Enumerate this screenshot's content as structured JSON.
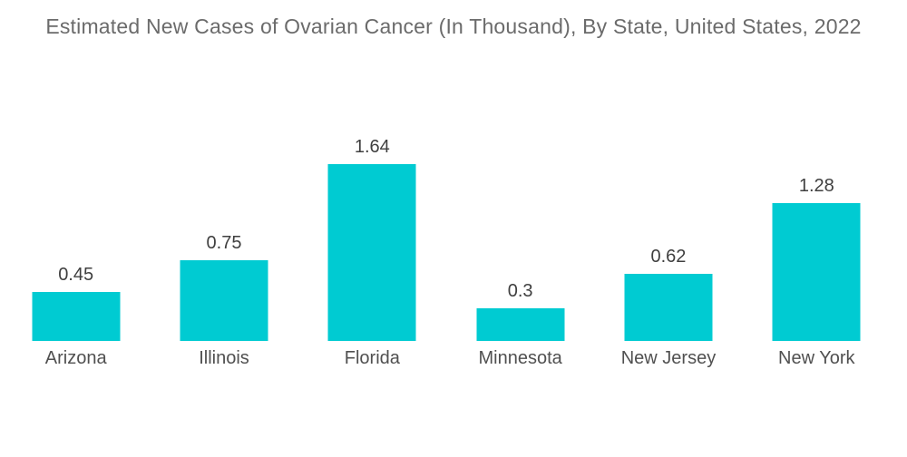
{
  "page": {
    "background_color": "#ffffff"
  },
  "chart_data": {
    "type": "bar",
    "title": "Estimated New Cases of Ovarian Cancer (In Thousand), By State, United States, 2022",
    "categories": [
      "Arizona",
      "Illinois",
      "Florida",
      "Minnesota",
      "New Jersey",
      "New York"
    ],
    "values": [
      0.45,
      0.75,
      1.64,
      0.3,
      0.62,
      1.28
    ],
    "value_labels": [
      "0.45",
      "0.75",
      "1.64",
      "0.3",
      "0.62",
      "1.28"
    ],
    "xlabel": "",
    "ylabel": "",
    "ylim": [
      0,
      1.8
    ],
    "grid": false,
    "axes_visible": false,
    "legend": "none",
    "data_labels_position": "above bars",
    "bar_color": "#00CBD2",
    "title_color": "#6b6b6b",
    "category_label_color": "#505050",
    "value_label_color": "#3f3f3f"
  }
}
